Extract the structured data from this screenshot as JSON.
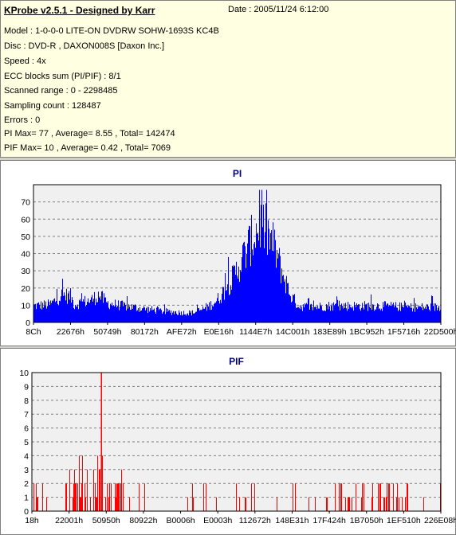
{
  "header": {
    "title": "KProbe v2.5.1 - Designed by Karr",
    "date": "Date : 2005/11/24 6:12:00"
  },
  "info_lines": [
    "Model : 1-0-0-0 LITE-ON DVDRW SOHW-1693S KC4B",
    "Disc : DVD-R , DAXON008S [Daxon Inc.]",
    "Speed : 4x",
    "ECC blocks sum (PI/PIF) : 8/1",
    "Scanned range : 0 - 2298485",
    "Sampling count : 128487",
    "Errors : 0",
    "PI Max= 77 , Average= 8.55 , Total= 142474",
    "PIF Max= 10 , Average= 0.42 , Total= 7069"
  ],
  "colors": {
    "info_bg": "#ffffe1",
    "plot_bg": "#f0f0f0",
    "bar": "#0000ff",
    "pif_bar": "#ff0000",
    "title": "#00007b",
    "grid": "#808080"
  },
  "chart_data": [
    {
      "type": "bar",
      "title": "PI",
      "ylim": [
        0,
        80
      ],
      "yticks": [
        0,
        10,
        20,
        30,
        40,
        50,
        60,
        70
      ],
      "xtick_labels": [
        "8Ch",
        "22676h",
        "50749h",
        "80172h",
        "AFE72h",
        "E0E16h",
        "1144E7h",
        "14C001h",
        "183E89h",
        "1BC952h",
        "1F5716h",
        "22D500h"
      ],
      "grid": true,
      "color": "#0000ff",
      "profile": [
        [
          0,
          12
        ],
        [
          0.04,
          13
        ],
        [
          0.07,
          20
        ],
        [
          0.09,
          19
        ],
        [
          0.1,
          13
        ],
        [
          0.12,
          15
        ],
        [
          0.14,
          16
        ],
        [
          0.16,
          20
        ],
        [
          0.18,
          14
        ],
        [
          0.22,
          12
        ],
        [
          0.27,
          10
        ],
        [
          0.32,
          8
        ],
        [
          0.37,
          7
        ],
        [
          0.39,
          7
        ],
        [
          0.41,
          9
        ],
        [
          0.43,
          12
        ],
        [
          0.45,
          16
        ],
        [
          0.47,
          24
        ],
        [
          0.49,
          33
        ],
        [
          0.51,
          45
        ],
        [
          0.53,
          57
        ],
        [
          0.545,
          66
        ],
        [
          0.555,
          72
        ],
        [
          0.57,
          66
        ],
        [
          0.59,
          55
        ],
        [
          0.61,
          36
        ],
        [
          0.63,
          20
        ],
        [
          0.65,
          12
        ],
        [
          0.68,
          11
        ],
        [
          0.72,
          12
        ],
        [
          0.78,
          12
        ],
        [
          0.85,
          12
        ],
        [
          0.92,
          11
        ],
        [
          1.0,
          11
        ]
      ],
      "max": 77,
      "average": 8.55,
      "total": 142474
    },
    {
      "type": "bar",
      "title": "PIF",
      "ylim": [
        0,
        10
      ],
      "yticks": [
        0,
        1,
        2,
        3,
        4,
        5,
        6,
        7,
        8,
        9,
        10
      ],
      "xtick_labels": [
        "18h",
        "22001h",
        "50950h",
        "80922h",
        "B0006h",
        "E0003h",
        "112672h",
        "148E31h",
        "17F424h",
        "1B7050h",
        "1EF510h",
        "226E08h"
      ],
      "grid": true,
      "color": "#ff0000",
      "max": 10,
      "average": 0.42,
      "total": 7069
    }
  ]
}
